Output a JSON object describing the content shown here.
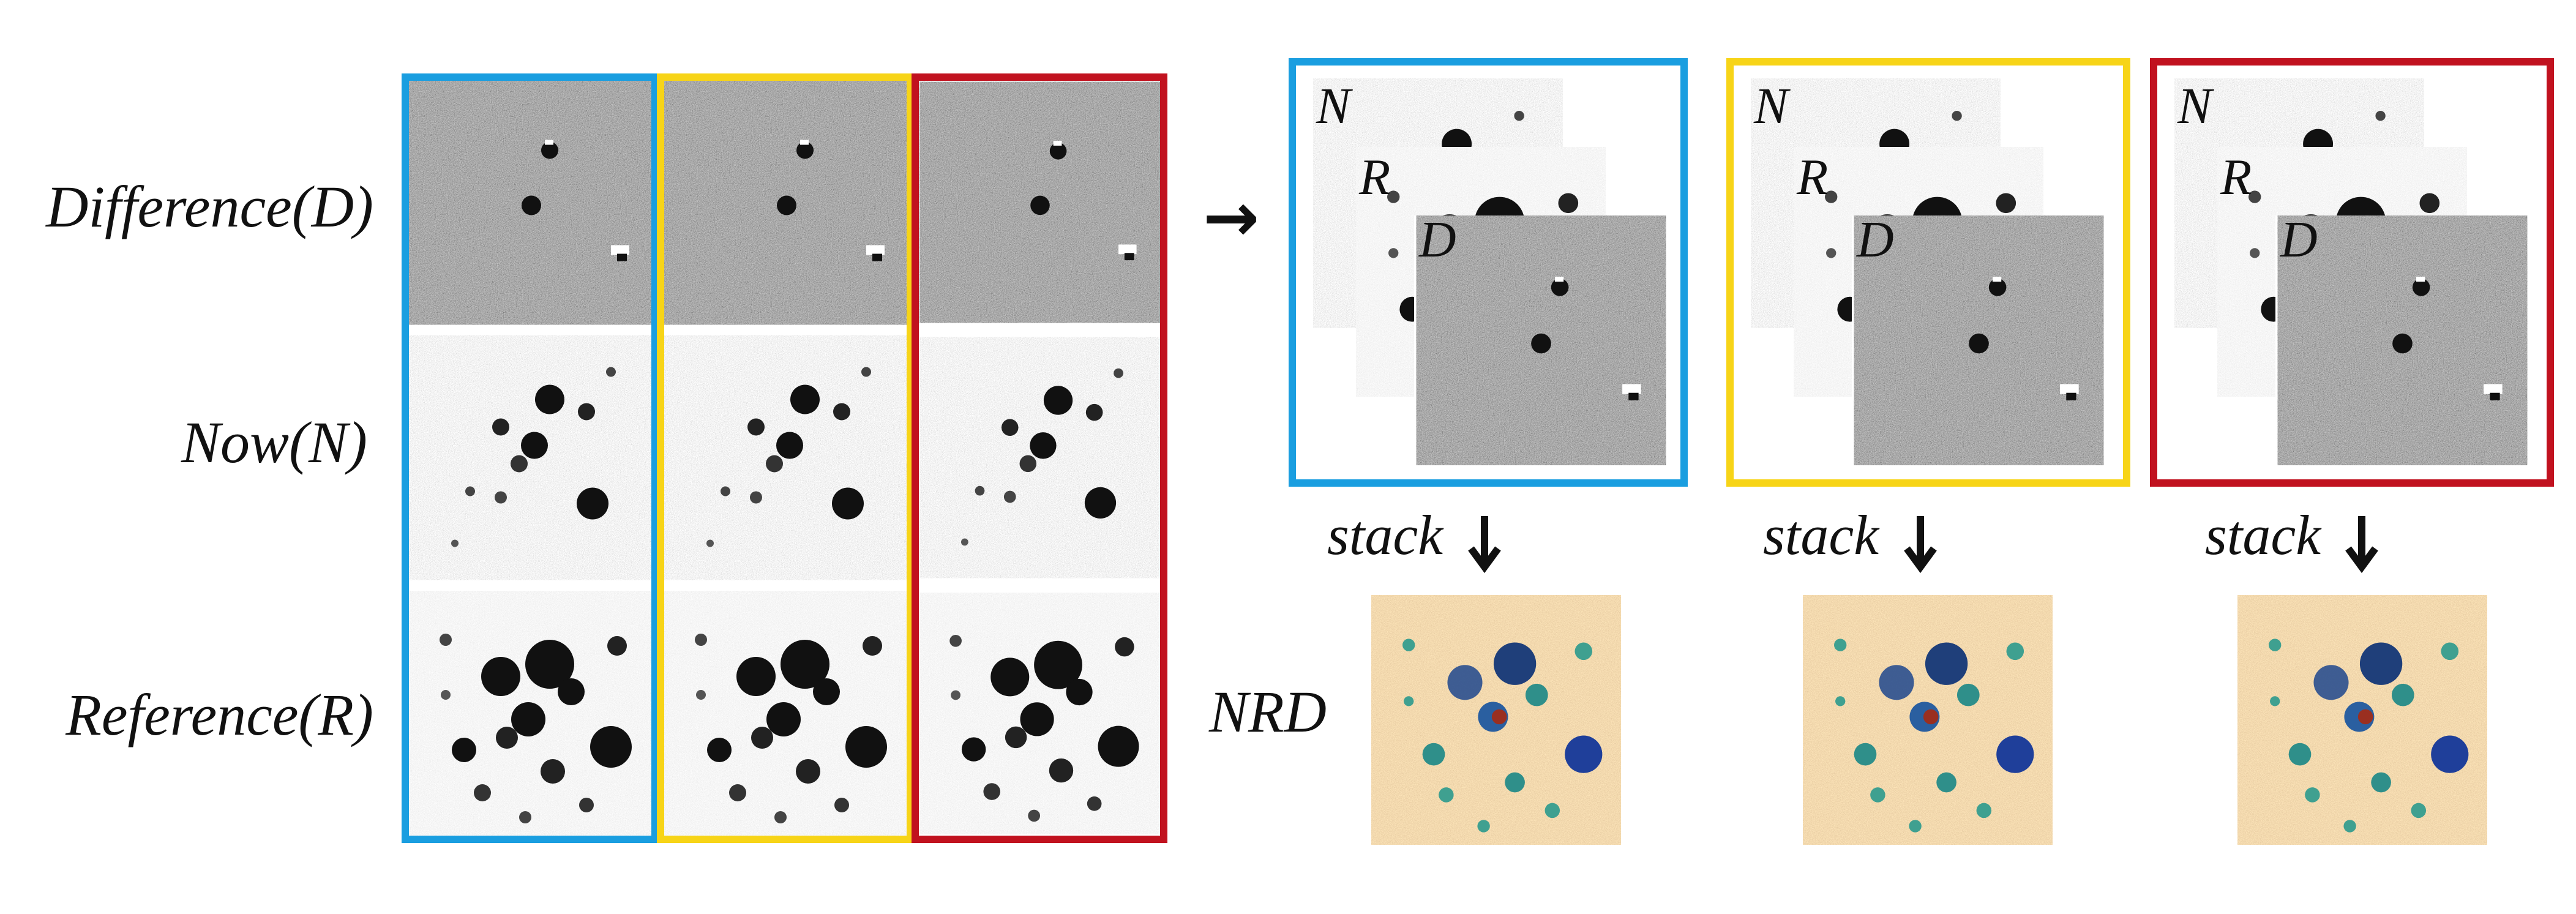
{
  "rows": {
    "difference": "Difference(D)",
    "now": "Now(N)",
    "reference": "Reference(R)"
  },
  "arrow_glyph": "→",
  "stack_labels": {
    "n": "N",
    "r": "R",
    "d": "D"
  },
  "stack_word": "stack",
  "nrd_label": "NRD",
  "colors": {
    "blue": "#1a9ee0",
    "yellow": "#f7d417",
    "red": "#c1121f"
  }
}
